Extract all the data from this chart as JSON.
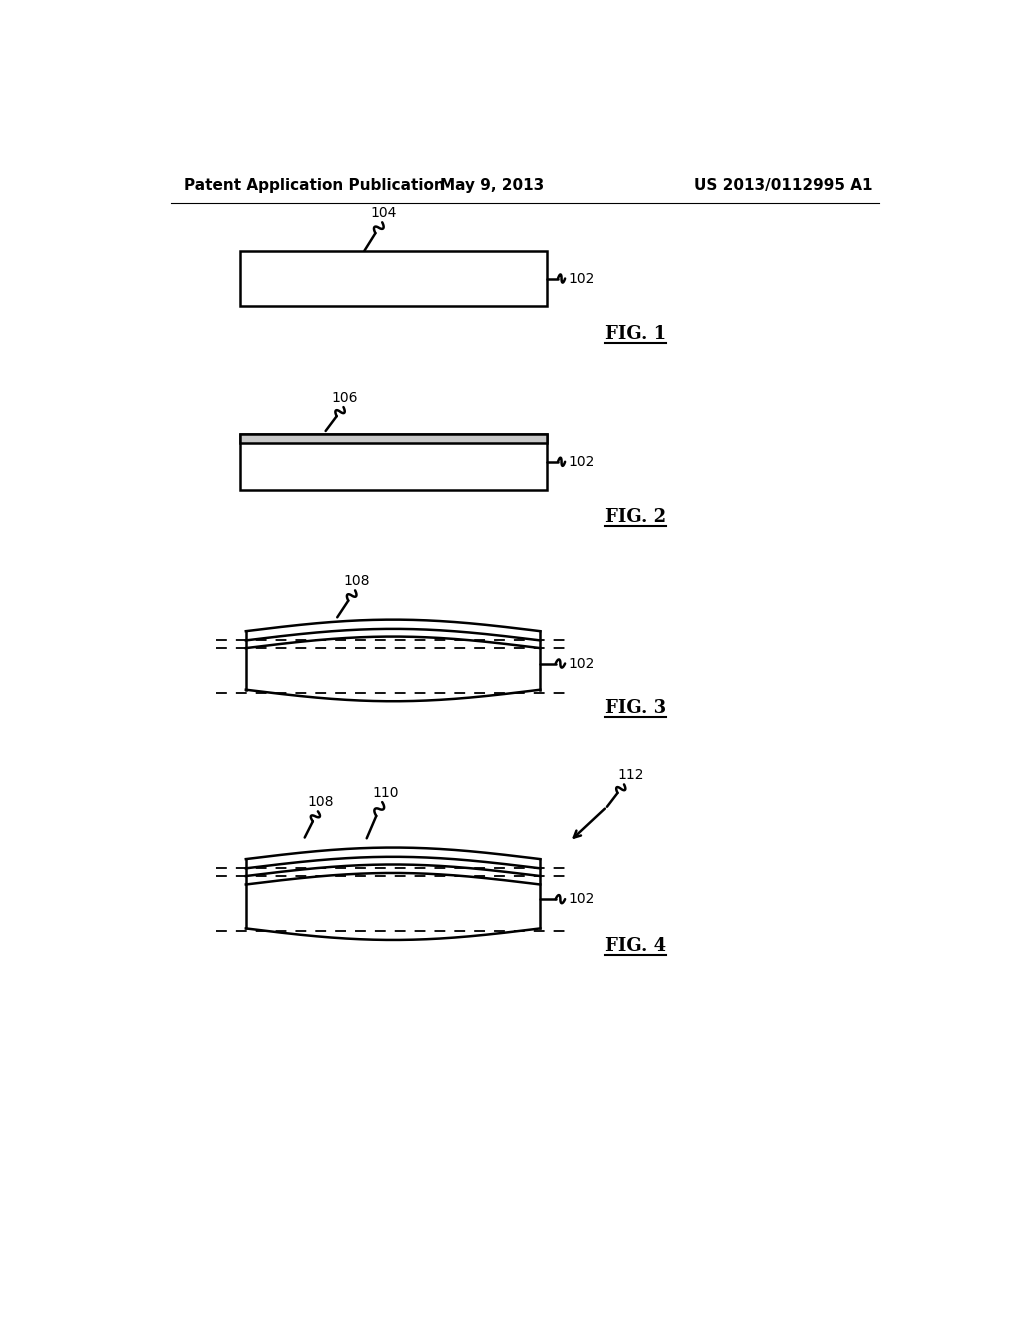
{
  "bg_color": "#ffffff",
  "line_color": "#000000",
  "header_left": "Patent Application Publication",
  "header_center": "May 9, 2013",
  "header_right": "US 2013/0112995 A1",
  "fig1_label": "FIG. 1",
  "fig2_label": "FIG. 2",
  "fig3_label": "FIG. 3",
  "fig4_label": "FIG. 4",
  "ref_104": "104",
  "ref_102_1": "102",
  "ref_102_2": "102",
  "ref_102_3": "102",
  "ref_102_4": "102",
  "ref_106": "106",
  "ref_108_3": "108",
  "ref_108_4": "108",
  "ref_110": "110",
  "ref_112": "112"
}
